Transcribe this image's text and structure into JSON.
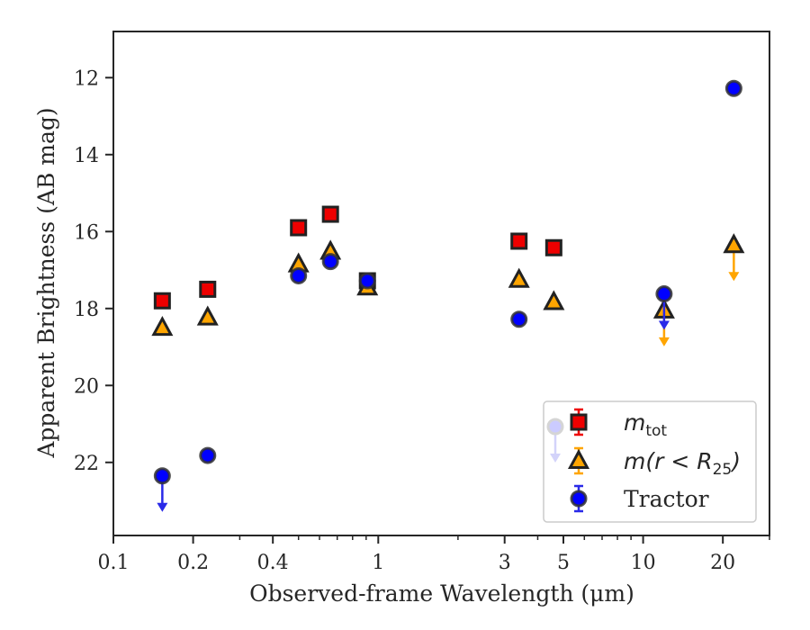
{
  "chart_data": {
    "type": "scatter",
    "xlabel": "Observed-frame Wavelength (μm)",
    "ylabel": "Apparent Brightness (AB mag)",
    "x_scale": "log",
    "xlim": [
      0.1,
      30
    ],
    "ylim": [
      23.9,
      10.8
    ],
    "y_inverted": true,
    "grid": false,
    "legend_position": "lower-right",
    "x_ticks": [
      {
        "value": 0.1,
        "label": "0.1"
      },
      {
        "value": 0.2,
        "label": "0.2"
      },
      {
        "value": 0.4,
        "label": "0.4"
      },
      {
        "value": 1,
        "label": "1"
      },
      {
        "value": 3,
        "label": "3"
      },
      {
        "value": 5,
        "label": "5"
      },
      {
        "value": 10,
        "label": "10"
      },
      {
        "value": 20,
        "label": "20"
      }
    ],
    "x_minor_ticks": [
      0.3,
      0.5,
      0.6,
      0.7,
      0.8,
      0.9,
      2,
      4,
      6,
      7,
      8,
      9,
      30
    ],
    "y_ticks": [
      {
        "value": 12,
        "label": "12"
      },
      {
        "value": 14,
        "label": "14"
      },
      {
        "value": 16,
        "label": "16"
      },
      {
        "value": 18,
        "label": "18"
      },
      {
        "value": 20,
        "label": "20"
      },
      {
        "value": 22,
        "label": "22"
      }
    ],
    "series": [
      {
        "name": "m_tot",
        "legend_label": {
          "main": "m",
          "sub": "tot",
          "suffix": ""
        },
        "marker": "square",
        "color": "#ee0000",
        "edge_color": "#222222",
        "points": [
          {
            "x": 0.153,
            "y": 17.8
          },
          {
            "x": 0.227,
            "y": 17.5
          },
          {
            "x": 0.5,
            "y": 15.9
          },
          {
            "x": 0.66,
            "y": 15.55
          },
          {
            "x": 0.91,
            "y": 17.28
          },
          {
            "x": 3.4,
            "y": 16.25
          },
          {
            "x": 4.6,
            "y": 16.42
          }
        ]
      },
      {
        "name": "m(r<R25)",
        "legend_label": {
          "main": "m(r < R",
          "sub": "25",
          "suffix": ")"
        },
        "marker": "triangle",
        "color": "#ffa500",
        "edge_color": "#222222",
        "points": [
          {
            "x": 0.153,
            "y": 18.5
          },
          {
            "x": 0.227,
            "y": 18.23
          },
          {
            "x": 0.5,
            "y": 16.85
          },
          {
            "x": 0.66,
            "y": 16.52
          },
          {
            "x": 0.91,
            "y": 17.45
          },
          {
            "x": 3.4,
            "y": 17.25
          },
          {
            "x": 4.6,
            "y": 17.83
          },
          {
            "x": 12,
            "y": 18.05,
            "upper_limit": true
          },
          {
            "x": 22,
            "y": 16.35,
            "upper_limit": true
          }
        ]
      },
      {
        "name": "Tractor",
        "legend_label": {
          "main": "Tractor",
          "sub": "",
          "suffix": ""
        },
        "marker": "circle",
        "color": "#0000ff",
        "edge_color": "#333333",
        "points": [
          {
            "x": 0.153,
            "y": 22.35,
            "upper_limit": true
          },
          {
            "x": 0.227,
            "y": 21.82
          },
          {
            "x": 0.5,
            "y": 17.15
          },
          {
            "x": 0.66,
            "y": 16.78
          },
          {
            "x": 0.91,
            "y": 17.28
          },
          {
            "x": 3.4,
            "y": 18.28
          },
          {
            "x": 12,
            "y": 17.62,
            "upper_limit": true
          },
          {
            "x": 22,
            "y": 12.28
          }
        ]
      }
    ]
  }
}
